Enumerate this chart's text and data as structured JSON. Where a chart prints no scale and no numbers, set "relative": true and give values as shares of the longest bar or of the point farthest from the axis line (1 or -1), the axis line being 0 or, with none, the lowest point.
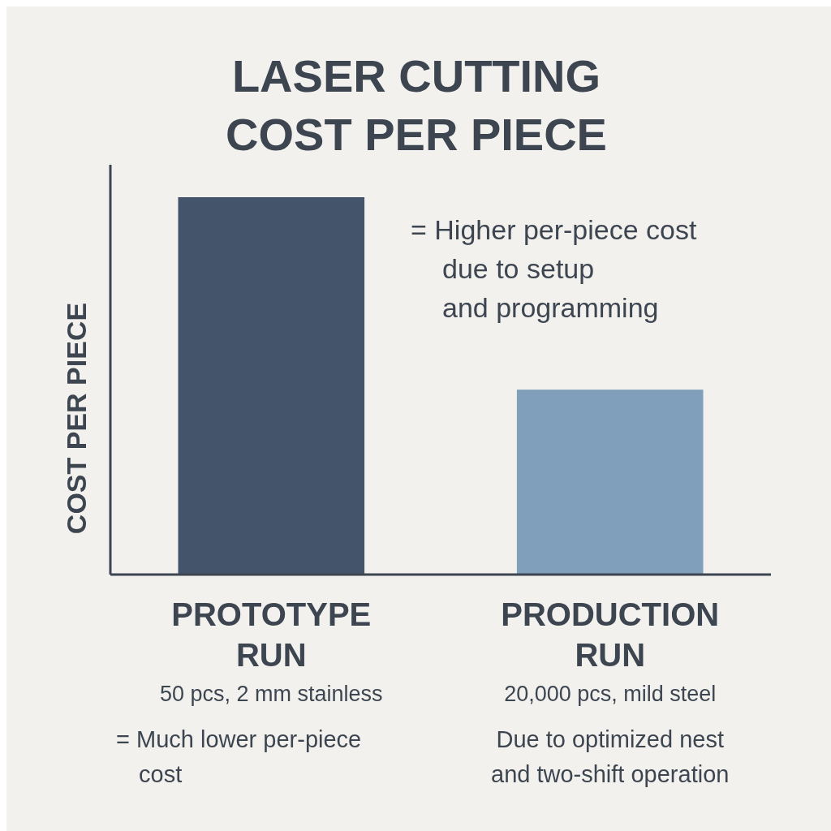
{
  "chart_data": {
    "type": "bar",
    "title": "LASER CUTTING COST PER PIECE",
    "ylabel": "COST PER PIECE",
    "relative": true,
    "categories": [
      "PROTOTYPE RUN",
      "PRODUCTION RUN"
    ],
    "values": [
      1,
      0.49
    ],
    "colors": [
      "#44546a",
      "#7f9fba"
    ],
    "annotations": [
      "= Higher per-piece cost due to setup and programming",
      "50 pcs, 2 mm stainless",
      "20,000 pcs, mild steel",
      "= Much lower per-piece cost",
      "Due to optimized nest and two-shift operation"
    ]
  }
}
